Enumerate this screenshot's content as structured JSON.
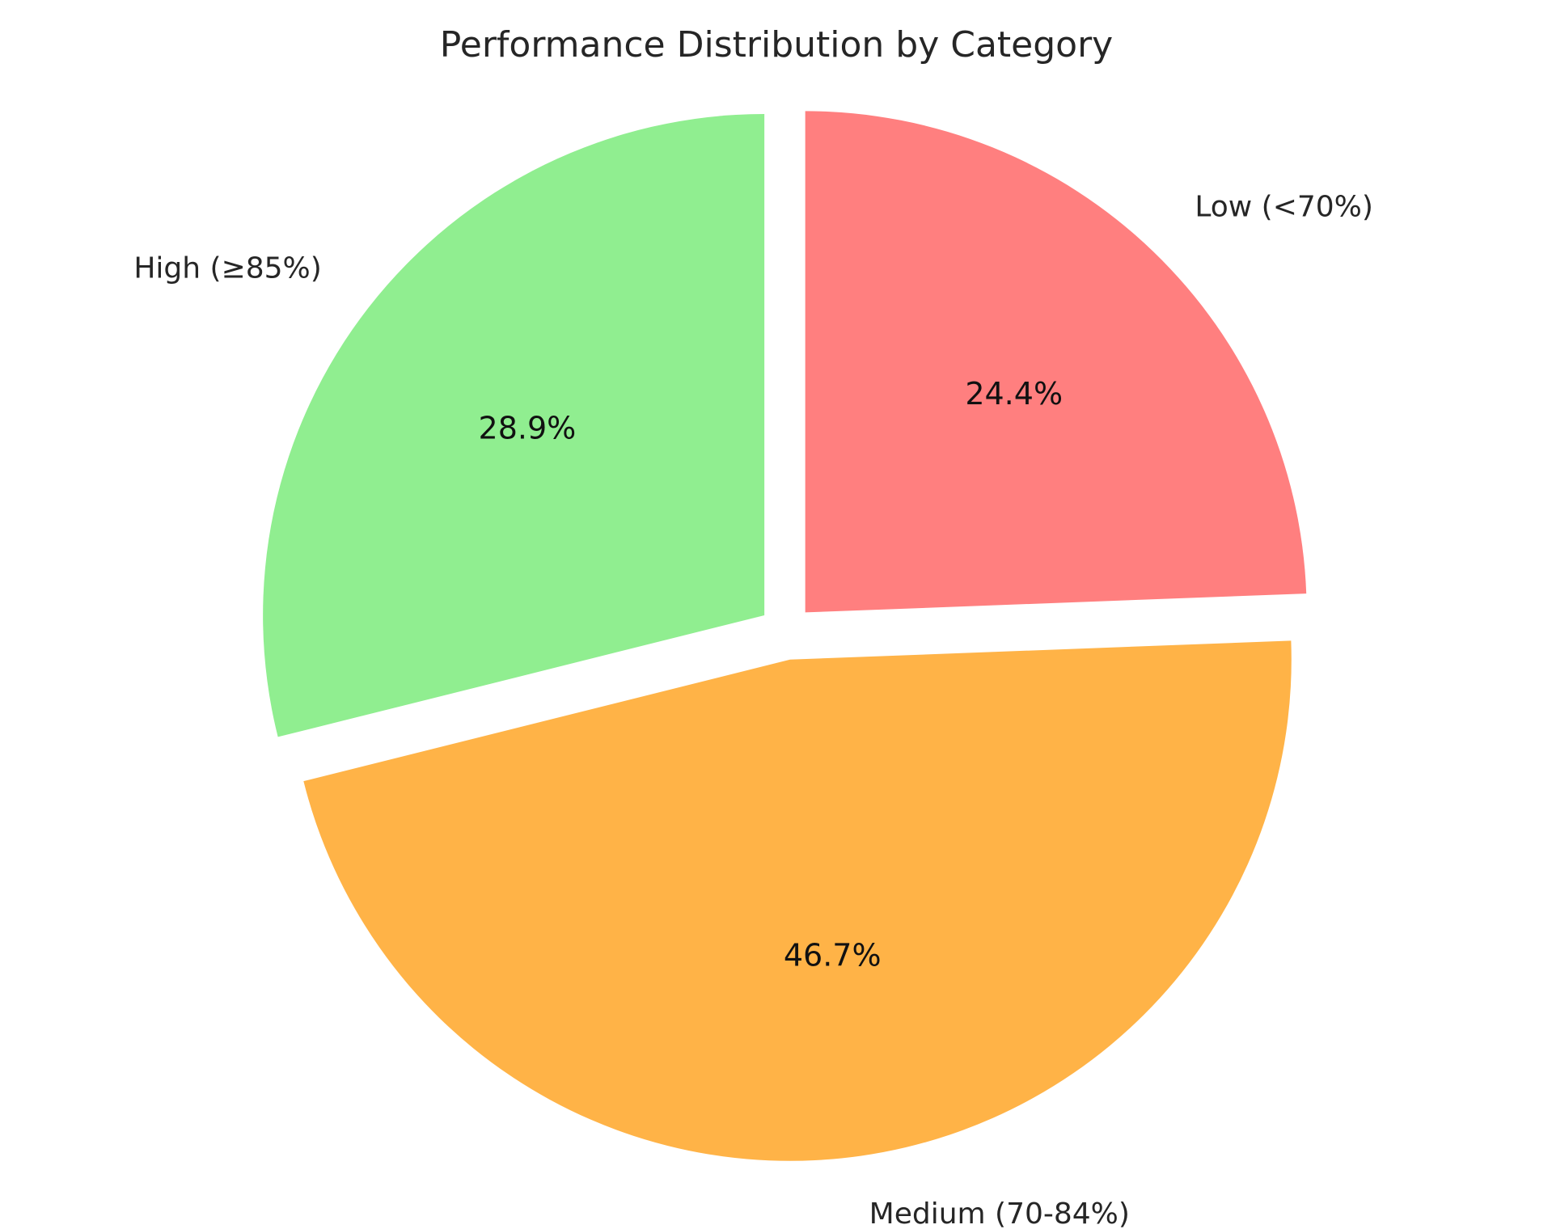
{
  "chart_data": {
    "type": "pie",
    "title": "Performance Distribution by Category",
    "slices": [
      {
        "label": "Low (<70%)",
        "value": 24.4,
        "pct_label": "24.4%",
        "color": "#ff7f7f"
      },
      {
        "label": "Medium (70-84%)",
        "value": 46.7,
        "pct_label": "46.7%",
        "color": "#ffb347"
      },
      {
        "label": "High (≥85%)",
        "value": 28.9,
        "pct_label": "28.9%",
        "color": "#90ee90"
      }
    ],
    "start_angle_deg": 90,
    "direction": "clockwise",
    "exploded": true
  }
}
